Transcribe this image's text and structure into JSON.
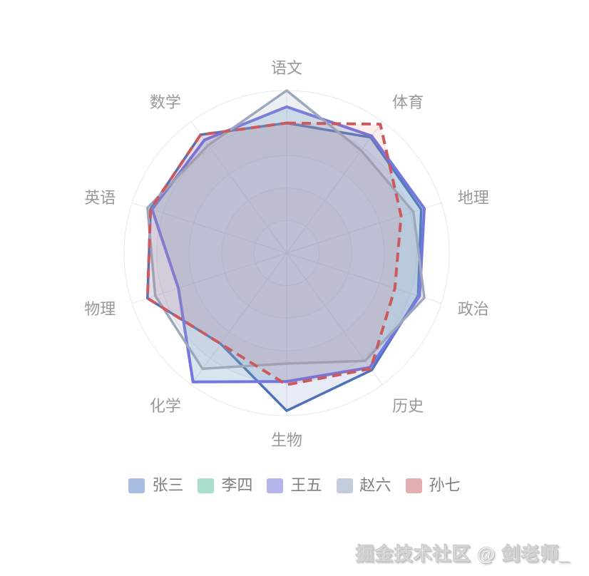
{
  "page": {
    "background": "#ffffff"
  },
  "watermark": {
    "text": "掘金技术社区 @ 剑老师_"
  },
  "legend": {
    "position": "bottom",
    "text_color": "#7f7f7f",
    "items": [
      {
        "label": "张三",
        "swatch_color": "#a9bce2"
      },
      {
        "label": "李四",
        "swatch_color": "#abdfcd"
      },
      {
        "label": "王五",
        "swatch_color": "#b5b5ec"
      },
      {
        "label": "赵六",
        "swatch_color": "#c3ccdb"
      },
      {
        "label": "孙七",
        "swatch_color": "#e2b0b0"
      }
    ]
  },
  "chart_data": {
    "type": "radar",
    "shape": "circle",
    "start_angle_deg": 90,
    "direction": "clockwise",
    "value_range": [
      0,
      100
    ],
    "ring_count": 5,
    "axis_label_color": "#999999",
    "grid": {
      "ring_color": "#e6e8f0",
      "spoke_color": "#e3e5ec",
      "band_color": "rgba(211,215,226,0.12)"
    },
    "indicators": [
      {
        "name": "语文",
        "max": 100
      },
      {
        "name": "体育",
        "max": 100
      },
      {
        "name": "地理",
        "max": 100
      },
      {
        "name": "政治",
        "max": 100
      },
      {
        "name": "历史",
        "max": 100
      },
      {
        "name": "生物",
        "max": 100
      },
      {
        "name": "化学",
        "max": 100
      },
      {
        "name": "物理",
        "max": 100
      },
      {
        "name": "英语",
        "max": 100
      },
      {
        "name": "数学",
        "max": 100
      }
    ],
    "series": [
      {
        "name": "张三",
        "values": [
          80,
          88,
          87,
          85,
          89,
          97,
          69,
          90,
          88,
          90
        ],
        "line_color": "#4d72b8",
        "line_width": 3.5,
        "line_dash": [],
        "fill_color": "rgba(77,114,184,0.14)"
      },
      {
        "name": "李四",
        "values": [
          90,
          89,
          89,
          86,
          87,
          79,
          98,
          70,
          87,
          86
        ],
        "line_color": "#5fc3a2",
        "line_width": 2.5,
        "line_dash": [],
        "fill_color": "rgba(95,195,162,0.14)"
      },
      {
        "name": "王五",
        "values": [
          90,
          89,
          89,
          86,
          87,
          79,
          98,
          70,
          87,
          86
        ],
        "line_color": "#7477e0",
        "line_width": 4,
        "line_dash": [],
        "fill_color": "rgba(116,119,224,0.14)"
      },
      {
        "name": "赵六",
        "values": [
          100,
          78,
          82,
          89,
          82,
          68,
          88,
          85,
          90,
          82
        ],
        "line_color": "#9da8bd",
        "line_width": 3.5,
        "line_dash": [],
        "fill_color": "rgba(157,168,189,0.18)"
      },
      {
        "name": "孙七",
        "values": [
          80,
          98,
          74,
          70,
          88,
          81,
          69,
          90,
          88,
          90
        ],
        "line_color": "#cb5a5e",
        "line_width": 4,
        "line_dash": [
          13,
          8
        ],
        "fill_color": "rgba(203,90,94,0.10)"
      }
    ]
  }
}
